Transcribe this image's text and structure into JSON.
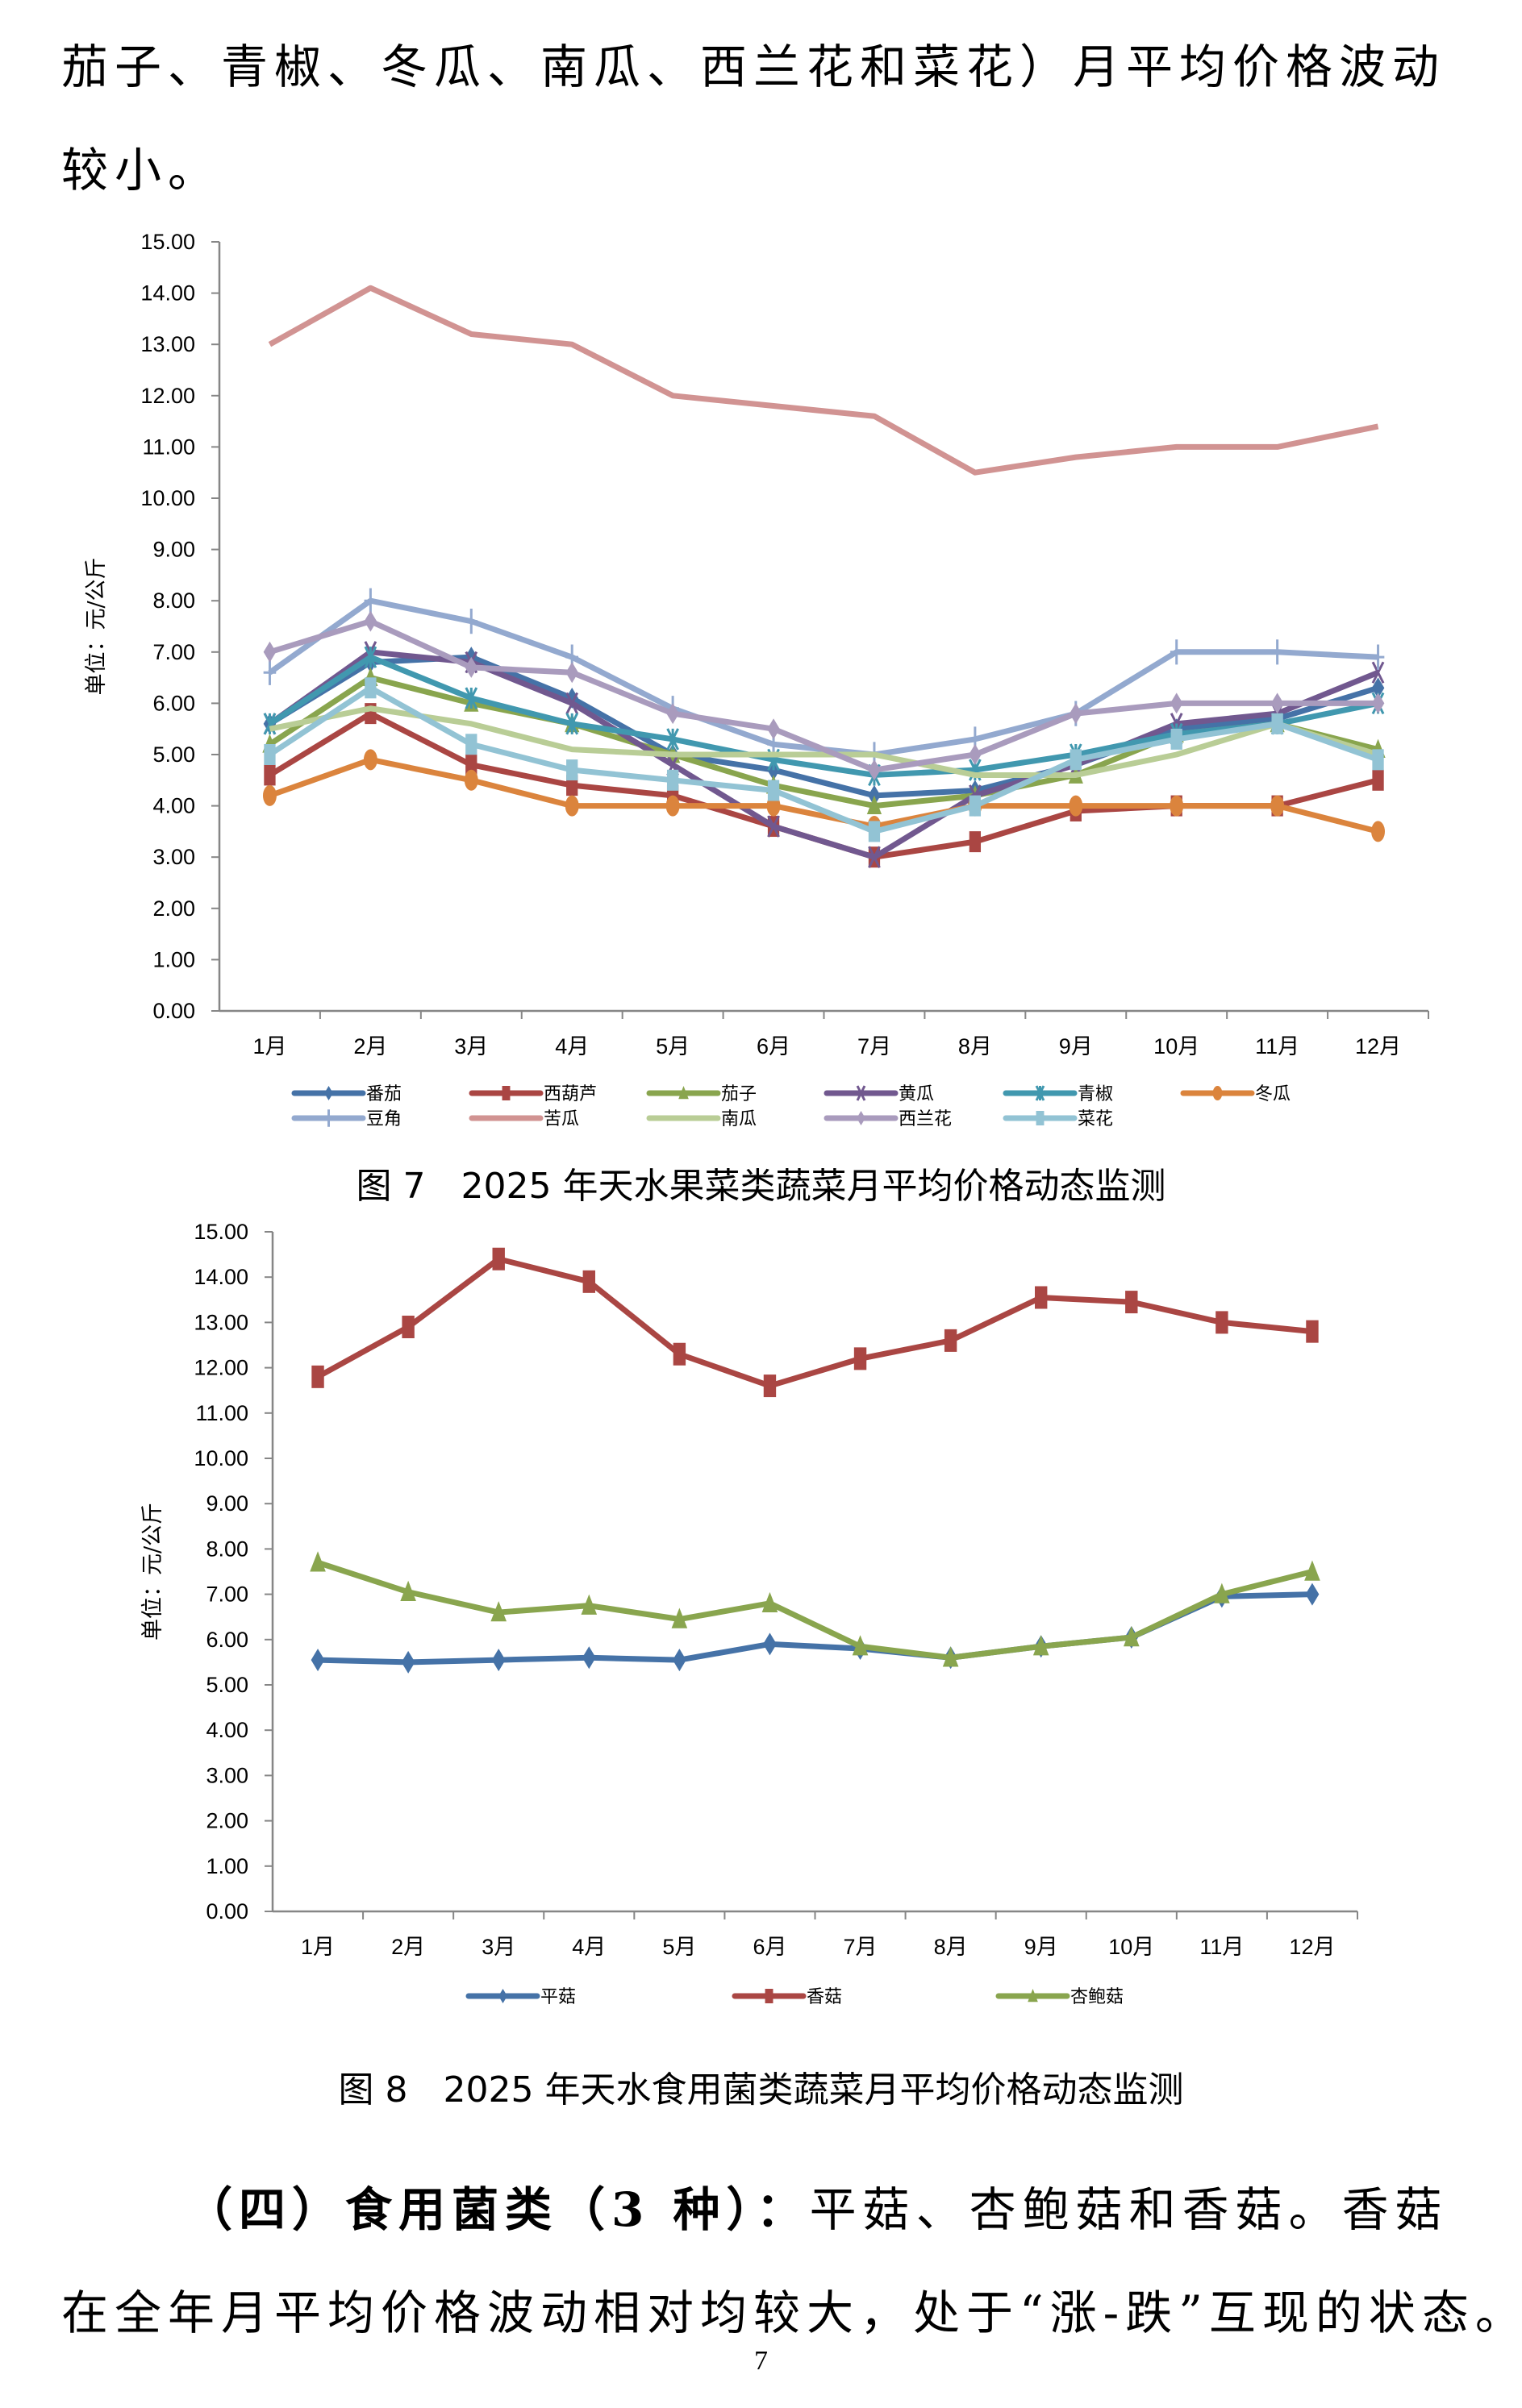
{
  "text_top": {
    "line1": "茄子、青椒、冬瓜、南瓜、西兰花和菜花）月平均价格波动",
    "line2": "较小。"
  },
  "chart_data": [
    {
      "type": "line",
      "title": "",
      "ylabel": "单位：元/公斤",
      "xlabel": "",
      "ylim": [
        0,
        15
      ],
      "yticks": [
        "0.00",
        "1.00",
        "2.00",
        "3.00",
        "4.00",
        "5.00",
        "6.00",
        "7.00",
        "8.00",
        "9.00",
        "10.00",
        "11.00",
        "12.00",
        "13.00",
        "14.00",
        "15.00"
      ],
      "categories": [
        "1月",
        "2月",
        "3月",
        "4月",
        "5月",
        "6月",
        "7月",
        "8月",
        "9月",
        "10月",
        "11月",
        "12月"
      ],
      "grid": false,
      "legend_position": "bottom",
      "series": [
        {
          "name": "番茄",
          "color": "#4572a7",
          "marker": "diamond",
          "values": [
            5.6,
            6.8,
            6.9,
            6.1,
            5.0,
            4.7,
            4.2,
            4.3,
            4.8,
            5.5,
            5.7,
            6.3
          ]
        },
        {
          "name": "西葫芦",
          "color": "#aa4643",
          "marker": "square",
          "values": [
            4.6,
            5.8,
            4.8,
            4.4,
            4.2,
            3.6,
            3.0,
            3.3,
            3.9,
            4.0,
            4.0,
            4.5
          ]
        },
        {
          "name": "茄子",
          "color": "#89a54e",
          "marker": "triangle",
          "values": [
            5.2,
            6.5,
            6.0,
            5.6,
            5.0,
            4.4,
            4.0,
            4.2,
            4.6,
            5.4,
            5.6,
            5.1
          ]
        },
        {
          "name": "黄瓜",
          "color": "#71588f",
          "marker": "x",
          "values": [
            5.6,
            7.0,
            6.8,
            6.0,
            4.8,
            3.6,
            3.0,
            4.2,
            4.8,
            5.6,
            5.8,
            6.6
          ]
        },
        {
          "name": "青椒",
          "color": "#4198af",
          "marker": "star",
          "values": [
            5.6,
            6.9,
            6.1,
            5.6,
            5.3,
            4.9,
            4.6,
            4.7,
            5.0,
            5.4,
            5.6,
            6.0
          ]
        },
        {
          "name": "冬瓜",
          "color": "#db843d",
          "marker": "circle",
          "values": [
            4.2,
            4.9,
            4.5,
            4.0,
            4.0,
            4.0,
            3.6,
            4.0,
            4.0,
            4.0,
            4.0,
            3.5
          ]
        },
        {
          "name": "豆角",
          "color": "#93a9cf",
          "marker": "plus",
          "values": [
            6.6,
            8.0,
            7.6,
            6.9,
            5.9,
            5.2,
            5.0,
            5.3,
            5.8,
            7.0,
            7.0,
            6.9
          ]
        },
        {
          "name": "苦瓜",
          "color": "#d19392",
          "marker": "none",
          "values": [
            13.0,
            14.1,
            13.2,
            13.0,
            12.0,
            11.8,
            11.6,
            10.5,
            10.8,
            11.0,
            11.0,
            11.4
          ]
        },
        {
          "name": "南瓜",
          "color": "#b9cd96",
          "marker": "none",
          "values": [
            5.5,
            5.9,
            5.6,
            5.1,
            5.0,
            5.0,
            5.0,
            4.6,
            4.6,
            5.0,
            5.6,
            5.0
          ]
        },
        {
          "name": "西兰花",
          "color": "#a99bbd",
          "marker": "diamond",
          "values": [
            7.0,
            7.6,
            6.7,
            6.6,
            5.8,
            5.5,
            4.7,
            5.0,
            5.8,
            6.0,
            6.0,
            6.0
          ]
        },
        {
          "name": "菜花",
          "color": "#92c3d4",
          "marker": "square",
          "values": [
            5.0,
            6.3,
            5.2,
            4.7,
            4.5,
            4.3,
            3.5,
            4.0,
            4.9,
            5.3,
            5.6,
            4.9
          ]
        }
      ]
    },
    {
      "type": "line",
      "title": "",
      "ylabel": "单位：元/公斤",
      "xlabel": "",
      "ylim": [
        0,
        15
      ],
      "yticks": [
        "0.00",
        "1.00",
        "2.00",
        "3.00",
        "4.00",
        "5.00",
        "6.00",
        "7.00",
        "8.00",
        "9.00",
        "10.00",
        "11.00",
        "12.00",
        "13.00",
        "14.00",
        "15.00"
      ],
      "categories": [
        "1月",
        "2月",
        "3月",
        "4月",
        "5月",
        "6月",
        "7月",
        "8月",
        "9月",
        "10月",
        "11月",
        "12月"
      ],
      "grid": false,
      "legend_position": "bottom",
      "series": [
        {
          "name": "平菇",
          "color": "#4572a7",
          "marker": "diamond",
          "values": [
            5.55,
            5.5,
            5.55,
            5.6,
            5.55,
            5.9,
            5.8,
            5.6,
            5.85,
            6.05,
            6.95,
            7.0
          ]
        },
        {
          "name": "香菇",
          "color": "#aa4643",
          "marker": "square",
          "values": [
            11.8,
            12.9,
            14.4,
            13.9,
            12.3,
            11.6,
            12.2,
            12.6,
            13.55,
            13.45,
            13.0,
            12.8
          ]
        },
        {
          "name": "杏鲍菇",
          "color": "#89a54e",
          "marker": "triangle",
          "values": [
            7.7,
            7.05,
            6.6,
            6.75,
            6.45,
            6.8,
            5.85,
            5.6,
            5.85,
            6.05,
            7.0,
            7.5
          ]
        }
      ]
    }
  ],
  "captions": {
    "fig7": "图 7　2025 年天水果菜类蔬菜月平均价格动态监测",
    "fig8": "图 8　2025 年天水食用菌类蔬菜月平均价格动态监测"
  },
  "paragraph": {
    "heading": "（四）食用菌类（3 种）：",
    "line1_rest": "平菇、杏鲍菇和香菇。香菇",
    "line2": "在全年月平均价格波动相对均较大，处于“涨-跌”互现的状态。"
  },
  "page_number": "7"
}
